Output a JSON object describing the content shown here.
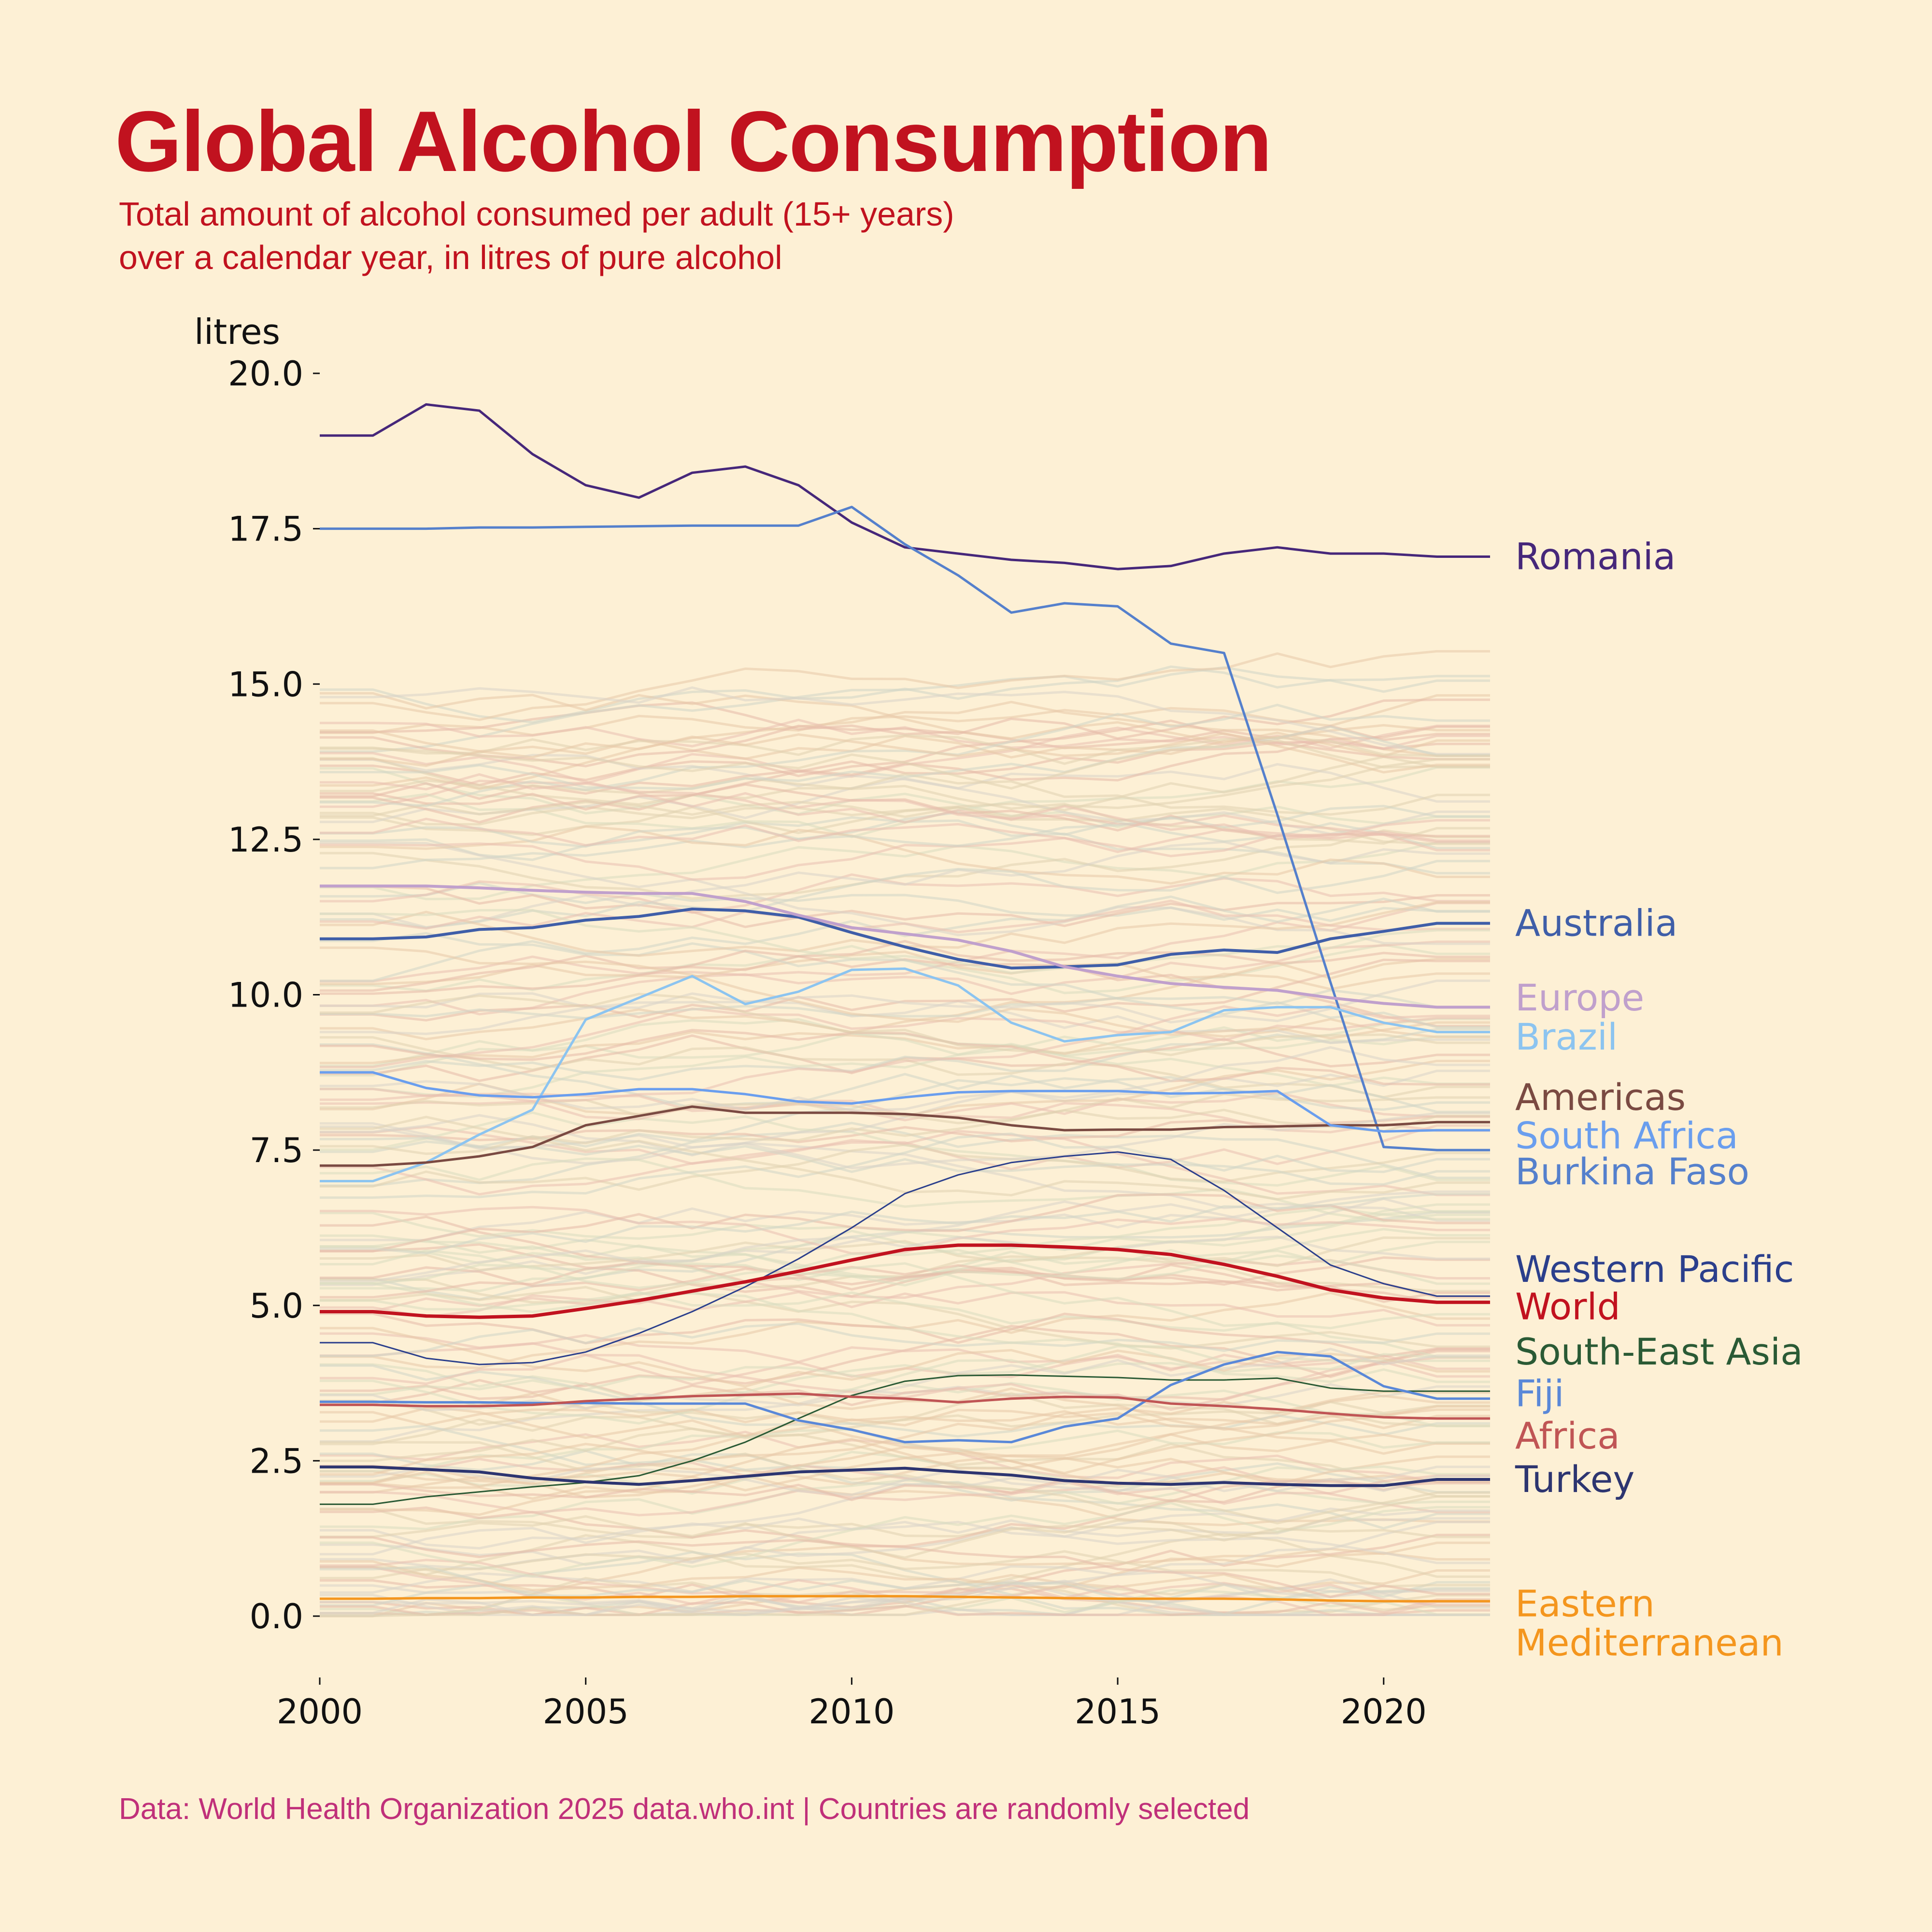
{
  "header": {
    "title": "Global Alcohol Consumption",
    "subtitle": "Total amount of alcohol consumed per adult (15+ years) over a calendar year, in litres of pure alcohol"
  },
  "footer": {
    "caption": "Data: World Health Organization 2025 data.who.int | Countries are randomly selected"
  },
  "colors": {
    "background": "#fdf0d5",
    "title": "#c1121f",
    "caption": "#c0307a"
  },
  "chart_data": {
    "type": "line",
    "title": "Global Alcohol Consumption",
    "subtitle": "Total amount of alcohol consumed per adult (15+ years) over a calendar year, in litres of pure alcohol",
    "xlabel": "",
    "ylabel": "litres",
    "xlim": [
      2000,
      2022
    ],
    "ylim": [
      0,
      20
    ],
    "x_ticks": [
      2000,
      2005,
      2010,
      2015,
      2020
    ],
    "x_tick_labels": [
      "2000",
      "2005",
      "2010",
      "2015",
      "2020"
    ],
    "y_ticks": [
      0,
      2.5,
      5,
      7.5,
      10,
      12.5,
      15,
      17.5,
      20
    ],
    "y_tick_labels": [
      "0.0",
      "2.5",
      "5.0",
      "7.5",
      "10.0",
      "12.5",
      "15.0",
      "17.5",
      "20.0"
    ],
    "grid": false,
    "legend": "direct labels at right end of lines",
    "background_note": "Many faint, low-opacity lines for other randomly selected countries ranging 0–15 litres",
    "x": [
      2000,
      2001,
      2002,
      2003,
      2004,
      2005,
      2006,
      2007,
      2008,
      2009,
      2010,
      2011,
      2012,
      2013,
      2014,
      2015,
      2016,
      2017,
      2018,
      2019,
      2020,
      2021,
      2022
    ],
    "series": [
      {
        "name": "Romania",
        "color": "#46277a",
        "width": 5,
        "values": [
          19.0,
          19.0,
          19.5,
          19.4,
          18.7,
          18.2,
          18.0,
          18.4,
          18.5,
          18.2,
          17.6,
          17.2,
          17.1,
          17.0,
          16.95,
          16.85,
          16.9,
          17.1,
          17.2,
          17.1,
          17.1,
          17.05,
          17.05
        ]
      },
      {
        "name": "Burkina Faso",
        "color": "#5580cc",
        "width": 5,
        "values": [
          17.5,
          17.5,
          17.5,
          17.52,
          17.52,
          17.53,
          17.54,
          17.55,
          17.55,
          17.55,
          17.85,
          17.25,
          16.75,
          16.15,
          16.3,
          16.25,
          15.65,
          15.5,
          12.9,
          10.2,
          7.55,
          7.5,
          7.5
        ]
      },
      {
        "name": "Australia",
        "color": "#3f5ea8",
        "width": 6,
        "values": [
          10.9,
          10.9,
          10.93,
          11.05,
          11.08,
          11.2,
          11.26,
          11.38,
          11.35,
          11.25,
          11.0,
          10.77,
          10.57,
          10.43,
          10.45,
          10.48,
          10.65,
          10.72,
          10.68,
          10.9,
          11.02,
          11.15,
          11.15
        ]
      },
      {
        "name": "Europe",
        "color": "#c0a0cc",
        "width": 6,
        "values": [
          11.75,
          11.75,
          11.75,
          11.72,
          11.68,
          11.65,
          11.63,
          11.63,
          11.5,
          11.28,
          11.08,
          10.98,
          10.88,
          10.7,
          10.45,
          10.3,
          10.18,
          10.12,
          10.07,
          9.95,
          9.86,
          9.8,
          9.8
        ]
      },
      {
        "name": "Brazil",
        "color": "#8cc4f0",
        "width": 5,
        "values": [
          7.0,
          7.0,
          7.3,
          7.75,
          8.15,
          9.6,
          9.95,
          10.3,
          9.85,
          10.05,
          10.4,
          10.42,
          10.15,
          9.55,
          9.25,
          9.35,
          9.4,
          9.75,
          9.8,
          9.8,
          9.55,
          9.4,
          9.4
        ]
      },
      {
        "name": "Americas",
        "color": "#7a4a42",
        "width": 5,
        "values": [
          7.25,
          7.25,
          7.3,
          7.4,
          7.55,
          7.9,
          8.05,
          8.2,
          8.1,
          8.1,
          8.1,
          8.08,
          8.02,
          7.9,
          7.82,
          7.83,
          7.83,
          7.87,
          7.88,
          7.9,
          7.9,
          7.95,
          7.95
        ]
      },
      {
        "name": "South Africa",
        "color": "#6a9eee",
        "width": 5,
        "values": [
          8.75,
          8.75,
          8.5,
          8.38,
          8.35,
          8.4,
          8.48,
          8.48,
          8.4,
          8.28,
          8.25,
          8.35,
          8.43,
          8.45,
          8.45,
          8.45,
          8.41,
          8.42,
          8.45,
          7.9,
          7.8,
          7.82,
          7.82
        ]
      },
      {
        "name": "Western Pacific",
        "color": "#2b3f8c",
        "width": 3,
        "values": [
          4.4,
          4.4,
          4.15,
          4.05,
          4.08,
          4.25,
          4.55,
          4.9,
          5.3,
          5.75,
          6.25,
          6.8,
          7.1,
          7.3,
          7.4,
          7.47,
          7.35,
          6.85,
          6.25,
          5.65,
          5.35,
          5.15,
          5.15
        ]
      },
      {
        "name": "World",
        "color": "#c1121f",
        "width": 7,
        "values": [
          4.9,
          4.9,
          4.83,
          4.81,
          4.83,
          4.95,
          5.08,
          5.23,
          5.38,
          5.55,
          5.73,
          5.9,
          5.97,
          5.97,
          5.94,
          5.9,
          5.82,
          5.66,
          5.47,
          5.25,
          5.12,
          5.05,
          5.05
        ]
      },
      {
        "name": "South-East Asia",
        "color": "#2a5a35",
        "width": 3,
        "values": [
          1.8,
          1.8,
          1.92,
          2.0,
          2.08,
          2.15,
          2.26,
          2.5,
          2.8,
          3.18,
          3.55,
          3.78,
          3.87,
          3.88,
          3.86,
          3.84,
          3.8,
          3.8,
          3.83,
          3.67,
          3.62,
          3.62,
          3.62
        ]
      },
      {
        "name": "Fiji",
        "color": "#5a88d8",
        "width": 5,
        "values": [
          3.45,
          3.45,
          3.44,
          3.44,
          3.43,
          3.43,
          3.42,
          3.42,
          3.42,
          3.15,
          3.0,
          2.8,
          2.83,
          2.8,
          3.05,
          3.18,
          3.72,
          4.05,
          4.25,
          4.18,
          3.7,
          3.5,
          3.5
        ]
      },
      {
        "name": "Africa",
        "color": "#c05555",
        "width": 5,
        "values": [
          3.4,
          3.4,
          3.38,
          3.38,
          3.4,
          3.46,
          3.5,
          3.54,
          3.56,
          3.58,
          3.53,
          3.5,
          3.44,
          3.5,
          3.53,
          3.52,
          3.42,
          3.38,
          3.33,
          3.26,
          3.2,
          3.18,
          3.18
        ]
      },
      {
        "name": "Turkey",
        "color": "#2d3570",
        "width": 6,
        "values": [
          2.4,
          2.4,
          2.36,
          2.32,
          2.22,
          2.16,
          2.12,
          2.18,
          2.25,
          2.32,
          2.35,
          2.38,
          2.32,
          2.27,
          2.18,
          2.14,
          2.12,
          2.15,
          2.12,
          2.1,
          2.1,
          2.2,
          2.2
        ]
      },
      {
        "name": "Eastern Mediterranean",
        "color": "#f4961e",
        "width": 5,
        "values": [
          0.28,
          0.28,
          0.29,
          0.29,
          0.3,
          0.3,
          0.31,
          0.31,
          0.32,
          0.32,
          0.32,
          0.32,
          0.31,
          0.3,
          0.29,
          0.28,
          0.28,
          0.28,
          0.27,
          0.25,
          0.24,
          0.24,
          0.24
        ]
      }
    ],
    "labels": [
      {
        "series": "Romania",
        "text": "Romania",
        "color": "#46277a",
        "y_value": 17.05
      },
      {
        "series": "Australia",
        "text": "Australia",
        "color": "#3f5ea8",
        "y_value": 11.15
      },
      {
        "series": "Europe",
        "text": "Europe",
        "color": "#c0a0cc",
        "y_value": 9.95
      },
      {
        "series": "Brazil",
        "text": "Brazil",
        "color": "#8cc4f0",
        "y_value": 9.32
      },
      {
        "series": "Americas",
        "text": "Americas",
        "color": "#7a4a42",
        "y_value": 8.35
      },
      {
        "series": "South Africa",
        "text": "South Africa",
        "color": "#6a9eee",
        "y_value": 7.73
      },
      {
        "series": "Burkina Faso",
        "text": "Burkina Faso",
        "color": "#5580cc",
        "y_value": 7.15
      },
      {
        "series": "Western Pacific",
        "text": "Western Pacific",
        "color": "#2b3f8c",
        "y_value": 5.58
      },
      {
        "series": "World",
        "text": "World",
        "color": "#c1121f",
        "y_value": 4.98
      },
      {
        "series": "South-East Asia",
        "text": "South-East Asia",
        "color": "#2a5a35",
        "y_value": 4.25
      },
      {
        "series": "Fiji",
        "text": "Fiji",
        "color": "#5a88d8",
        "y_value": 3.58
      },
      {
        "series": "Africa",
        "text": "Africa",
        "color": "#c05555",
        "y_value": 2.9
      },
      {
        "series": "Turkey",
        "text": "Turkey",
        "color": "#2d3570",
        "y_value": 2.2
      },
      {
        "series": "Eastern Mediterranean",
        "text": "Eastern",
        "color": "#f4961e",
        "y_value": 0.2
      },
      {
        "series": "Eastern Mediterranean",
        "text": "Mediterranean",
        "color": "#f4961e",
        "y_value": -0.43
      }
    ]
  }
}
